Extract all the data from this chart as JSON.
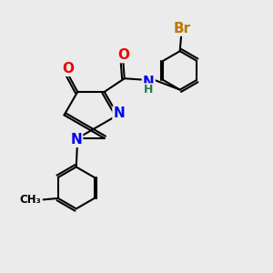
{
  "background_color": "#ebebeb",
  "bond_color": "#000000",
  "bond_width": 1.5,
  "atom_colors": {
    "N": "#0000ee",
    "O": "#ee0000",
    "Br": "#bb7700",
    "NH": "#2a7a50",
    "C": "#000000"
  },
  "font_size_atom": 11,
  "font_size_br": 11,
  "font_size_nh": 10
}
